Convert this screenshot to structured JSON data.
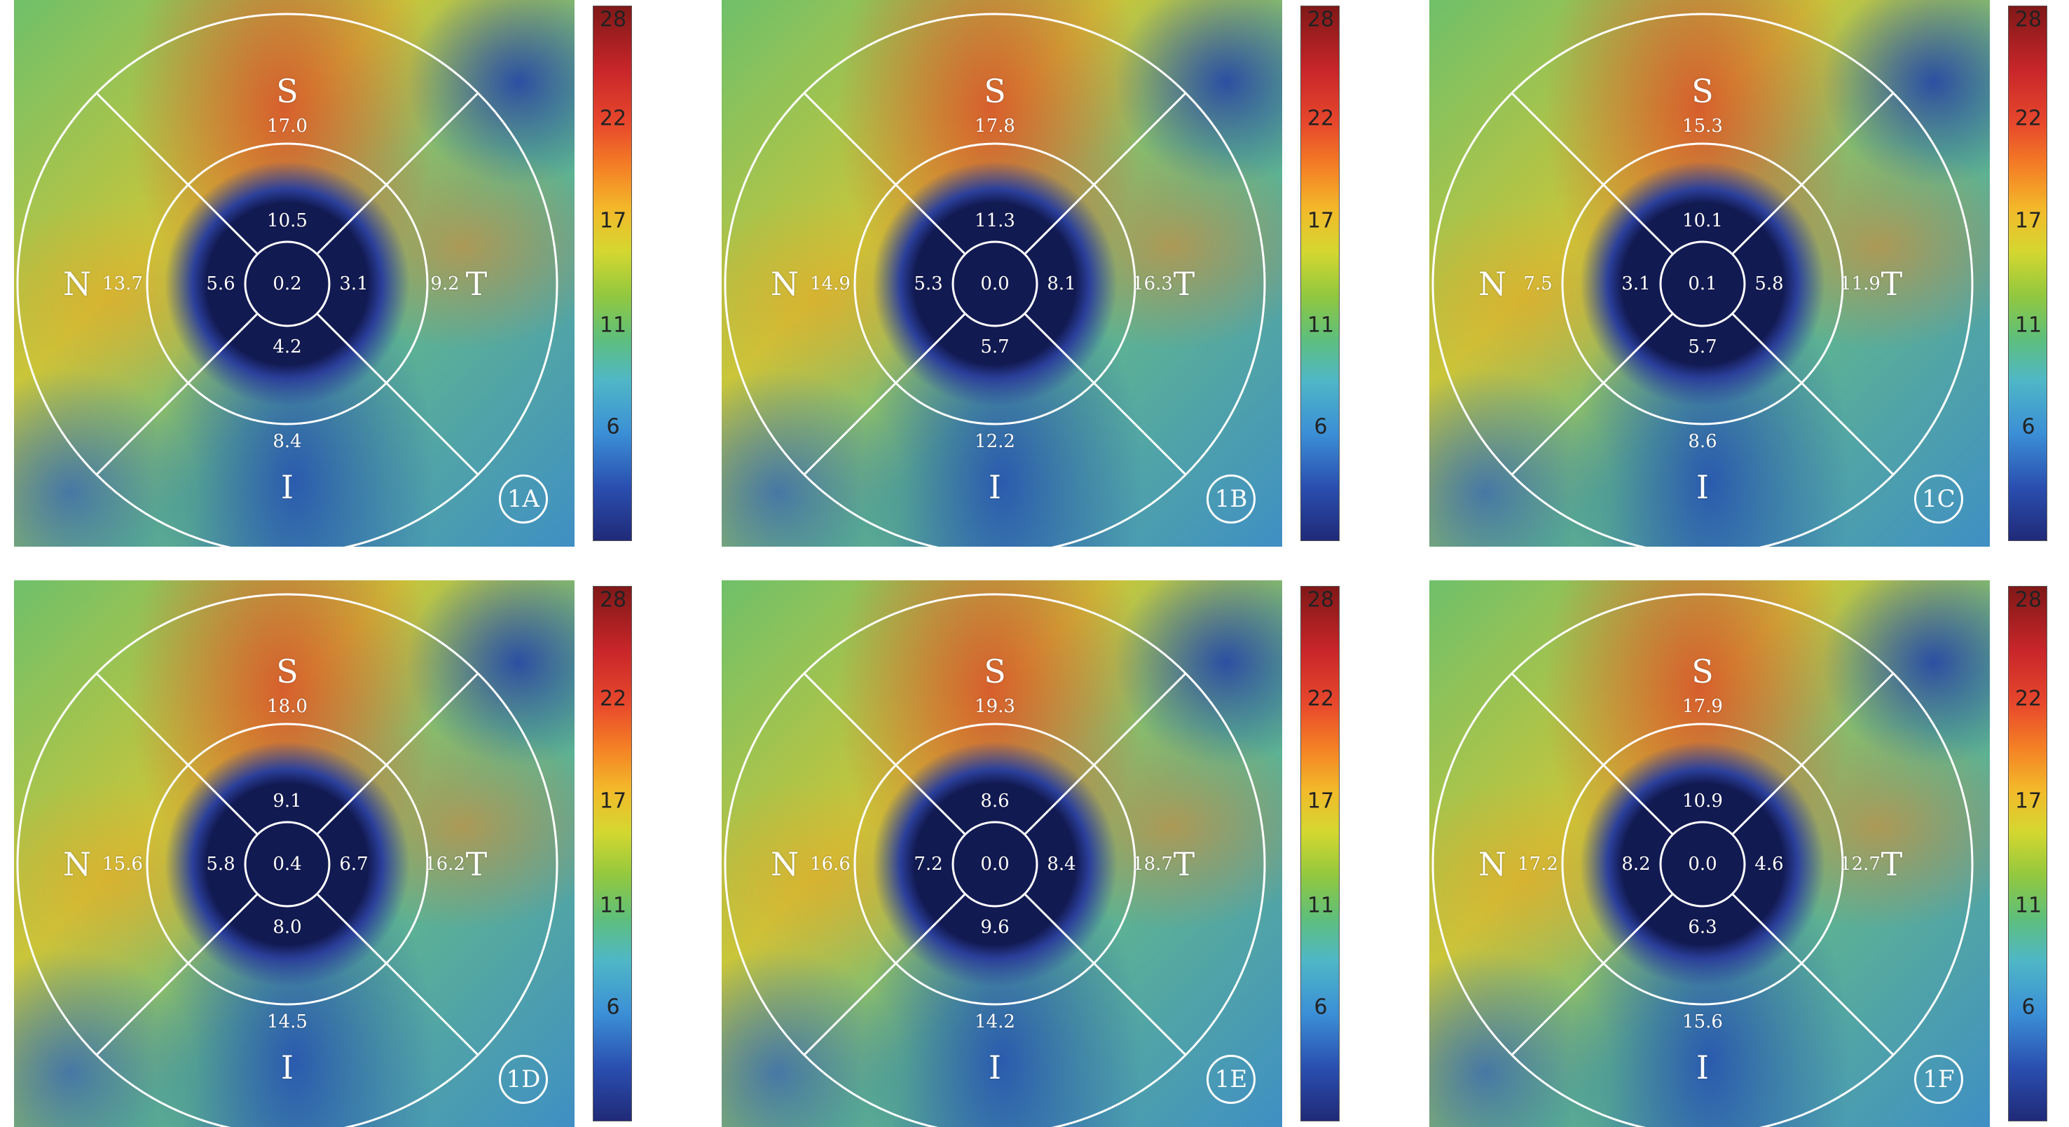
{
  "colorbar_ticks": [
    "28",
    "22",
    "17",
    "11",
    "6"
  ],
  "colors": {
    "foveal_avascular_zone": "#121a52",
    "ring_lines": "#ffffff"
  },
  "panels": [
    {
      "label": "1A",
      "S": "S",
      "N": "N",
      "T": "T",
      "I": "I",
      "center": "0.2",
      "inner_s": "10.5",
      "inner_n": "5.6",
      "inner_t": "3.1",
      "inner_i": "4.2",
      "outer_s": "17.0",
      "outer_n": "13.7",
      "outer_t": "9.2",
      "outer_i": "8.4"
    },
    {
      "label": "1B",
      "S": "S",
      "N": "N",
      "T": "T",
      "I": "I",
      "center": "0.0",
      "inner_s": "11.3",
      "inner_n": "5.3",
      "inner_t": "8.1",
      "inner_i": "5.7",
      "outer_s": "17.8",
      "outer_n": "14.9",
      "outer_t": "16.3",
      "outer_i": "12.2"
    },
    {
      "label": "1C",
      "S": "S",
      "N": "N",
      "T": "T",
      "I": "I",
      "center": "0.1",
      "inner_s": "10.1",
      "inner_n": "3.1",
      "inner_t": "5.8",
      "inner_i": "5.7",
      "outer_s": "15.3",
      "outer_n": "7.5",
      "outer_t": "11.9",
      "outer_i": "8.6"
    },
    {
      "label": "1D",
      "S": "S",
      "N": "N",
      "T": "T",
      "I": "I",
      "center": "0.4",
      "inner_s": "9.1",
      "inner_n": "5.8",
      "inner_t": "6.7",
      "inner_i": "8.0",
      "outer_s": "18.0",
      "outer_n": "15.6",
      "outer_t": "16.2",
      "outer_i": "14.5"
    },
    {
      "label": "1E",
      "S": "S",
      "N": "N",
      "T": "T",
      "I": "I",
      "center": "0.0",
      "inner_s": "8.6",
      "inner_n": "7.2",
      "inner_t": "8.4",
      "inner_i": "9.6",
      "outer_s": "19.3",
      "outer_n": "16.6",
      "outer_t": "18.7",
      "outer_i": "14.2"
    },
    {
      "label": "1F",
      "S": "S",
      "N": "N",
      "T": "T",
      "I": "I",
      "center": "0.0",
      "inner_s": "10.9",
      "inner_n": "8.2",
      "inner_t": "4.6",
      "inner_i": "6.3",
      "outer_s": "17.9",
      "outer_n": "17.2",
      "outer_t": "12.7",
      "outer_i": "15.6"
    }
  ]
}
